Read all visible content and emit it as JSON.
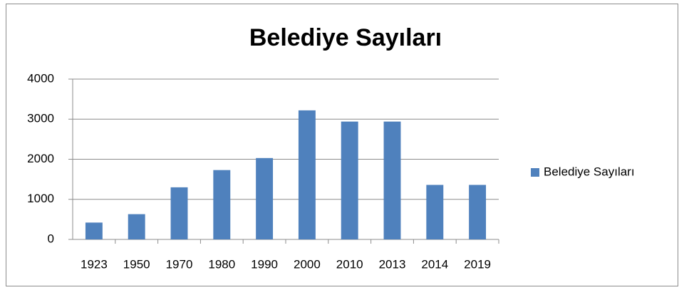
{
  "chart_data": {
    "type": "bar",
    "title": "Belediye Sayıları",
    "categories": [
      "1923",
      "1950",
      "1970",
      "1980",
      "1990",
      "2000",
      "2010",
      "2013",
      "2014",
      "2019"
    ],
    "series": [
      {
        "name": "Belediye Sayıları",
        "color": "#4f81bd",
        "values": [
          420,
          630,
          1300,
          1730,
          2030,
          3220,
          2940,
          2940,
          1360,
          1360
        ]
      }
    ],
    "ylim": [
      0,
      4000
    ],
    "yticks": [
      0,
      1000,
      2000,
      3000,
      4000
    ],
    "grid": true,
    "legend": "right"
  }
}
